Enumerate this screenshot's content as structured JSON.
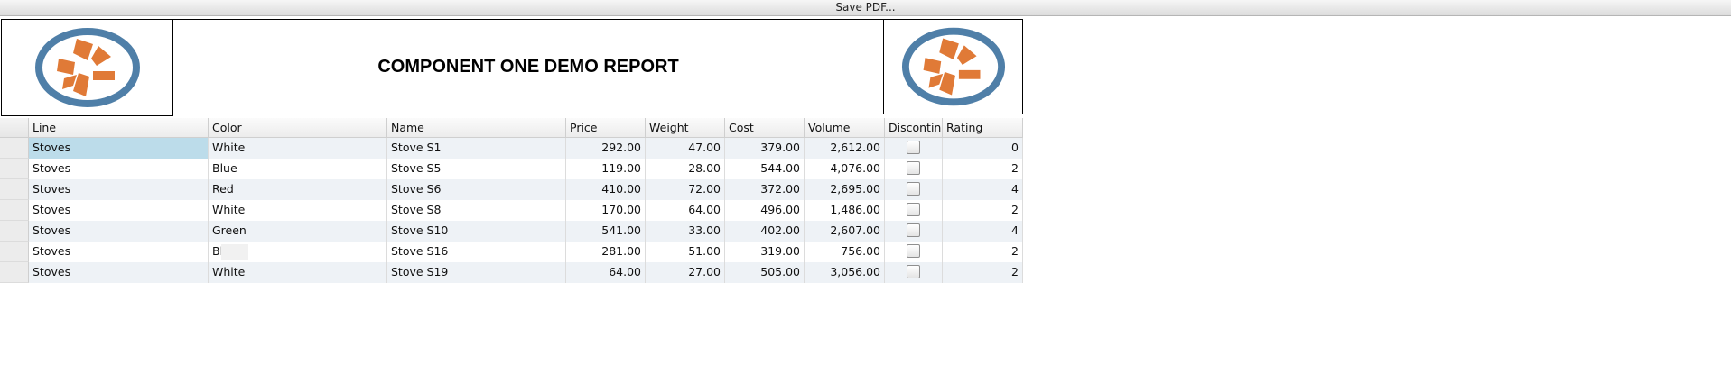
{
  "toolbar": {
    "save_label": "Save PDF..."
  },
  "report": {
    "title": "COMPONENT ONE DEMO REPORT"
  },
  "colors": {
    "logo_ring": "#4f7fa8",
    "logo_petal": "#e07a37",
    "selected_cell": "#bcdcea",
    "alt_row": "#eef2f6"
  },
  "grid": {
    "columns": [
      "Line",
      "Color",
      "Name",
      "Price",
      "Weight",
      "Cost",
      "Volume",
      "Discontin",
      "Rating"
    ],
    "rows": [
      {
        "line": "Stoves",
        "color": "White",
        "name": "Stove S1",
        "price": "292.00",
        "weight": "47.00",
        "cost": "379.00",
        "volume": "2,612.00",
        "discontinued": false,
        "rating": "0"
      },
      {
        "line": "Stoves",
        "color": "Blue",
        "name": "Stove S5",
        "price": "119.00",
        "weight": "28.00",
        "cost": "544.00",
        "volume": "4,076.00",
        "discontinued": false,
        "rating": "2"
      },
      {
        "line": "Stoves",
        "color": "Red",
        "name": "Stove S6",
        "price": "410.00",
        "weight": "72.00",
        "cost": "372.00",
        "volume": "2,695.00",
        "discontinued": false,
        "rating": "4"
      },
      {
        "line": "Stoves",
        "color": "White",
        "name": "Stove S8",
        "price": "170.00",
        "weight": "64.00",
        "cost": "496.00",
        "volume": "1,486.00",
        "discontinued": false,
        "rating": "2"
      },
      {
        "line": "Stoves",
        "color": "Green",
        "name": "Stove S10",
        "price": "541.00",
        "weight": "33.00",
        "cost": "402.00",
        "volume": "2,607.00",
        "discontinued": false,
        "rating": "4"
      },
      {
        "line": "Stoves",
        "color": "Bl",
        "name": "Stove S16",
        "price": "281.00",
        "weight": "51.00",
        "cost": "319.00",
        "volume": "756.00",
        "discontinued": false,
        "rating": "2"
      },
      {
        "line": "Stoves",
        "color": "White",
        "name": "Stove S19",
        "price": "64.00",
        "weight": "27.00",
        "cost": "505.00",
        "volume": "3,056.00",
        "discontinued": false,
        "rating": "2"
      }
    ]
  }
}
